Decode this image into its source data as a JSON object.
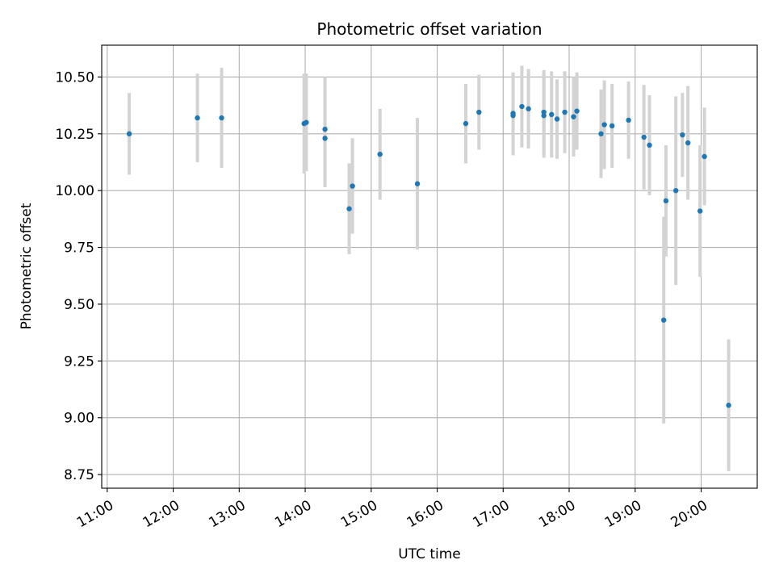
{
  "chart_data": {
    "type": "scatter",
    "title": "Photometric offset variation",
    "xlabel": "UTC time",
    "ylabel": "Photometric offset",
    "x_ticks": [
      "11:00",
      "12:00",
      "13:00",
      "14:00",
      "15:00",
      "16:00",
      "17:00",
      "18:00",
      "19:00",
      "20:00"
    ],
    "y_ticks": [
      "8.75",
      "9.00",
      "9.25",
      "9.50",
      "9.75",
      "10.00",
      "10.25",
      "10.50"
    ],
    "xlim": [
      "10:55",
      "20:51"
    ],
    "ylim": [
      8.69,
      10.64
    ],
    "grid": true,
    "point_color": "#1f77b4",
    "errorbar_color": "#d3d3d3",
    "points": [
      {
        "x": "11:20",
        "y": 10.25,
        "err": 0.18
      },
      {
        "x": "12:22",
        "y": 10.32,
        "err": 0.195
      },
      {
        "x": "12:44",
        "y": 10.32,
        "err": 0.22
      },
      {
        "x": "13:59",
        "y": 10.295,
        "err": 0.22
      },
      {
        "x": "14:01",
        "y": 10.3,
        "err": 0.215
      },
      {
        "x": "14:18",
        "y": 10.27,
        "err": 0.23
      },
      {
        "x": "14:18",
        "y": 10.23,
        "err": 0.215
      },
      {
        "x": "14:40",
        "y": 9.92,
        "err": 0.2
      },
      {
        "x": "14:43",
        "y": 10.02,
        "err": 0.21
      },
      {
        "x": "15:08",
        "y": 10.16,
        "err": 0.2
      },
      {
        "x": "15:42",
        "y": 10.03,
        "err": 0.29
      },
      {
        "x": "16:26",
        "y": 10.295,
        "err": 0.175
      },
      {
        "x": "16:38",
        "y": 10.345,
        "err": 0.165
      },
      {
        "x": "17:09",
        "y": 10.34,
        "err": 0.18
      },
      {
        "x": "17:09",
        "y": 10.33,
        "err": 0.175
      },
      {
        "x": "17:17",
        "y": 10.37,
        "err": 0.18
      },
      {
        "x": "17:23",
        "y": 10.36,
        "err": 0.175
      },
      {
        "x": "17:37",
        "y": 10.345,
        "err": 0.185
      },
      {
        "x": "17:37",
        "y": 10.33,
        "err": 0.185
      },
      {
        "x": "17:44",
        "y": 10.335,
        "err": 0.19
      },
      {
        "x": "17:49",
        "y": 10.315,
        "err": 0.175
      },
      {
        "x": "17:56",
        "y": 10.345,
        "err": 0.18
      },
      {
        "x": "18:04",
        "y": 10.325,
        "err": 0.175
      },
      {
        "x": "18:07",
        "y": 10.35,
        "err": 0.17
      },
      {
        "x": "18:29",
        "y": 10.25,
        "err": 0.195
      },
      {
        "x": "18:32",
        "y": 10.29,
        "err": 0.195
      },
      {
        "x": "18:39",
        "y": 10.285,
        "err": 0.185
      },
      {
        "x": "18:54",
        "y": 10.31,
        "err": 0.17
      },
      {
        "x": "19:08",
        "y": 10.235,
        "err": 0.23
      },
      {
        "x": "19:13",
        "y": 10.2,
        "err": 0.22
      },
      {
        "x": "19:26",
        "y": 9.43,
        "err": 0.455
      },
      {
        "x": "19:28",
        "y": 9.955,
        "err": 0.245
      },
      {
        "x": "19:37",
        "y": 10.0,
        "err": 0.415
      },
      {
        "x": "19:43",
        "y": 10.245,
        "err": 0.185
      },
      {
        "x": "19:48",
        "y": 10.21,
        "err": 0.25
      },
      {
        "x": "19:59",
        "y": 9.91,
        "err": 0.29
      },
      {
        "x": "20:03",
        "y": 10.15,
        "err": 0.215
      },
      {
        "x": "20:25",
        "y": 9.055,
        "err": 0.29
      }
    ]
  }
}
